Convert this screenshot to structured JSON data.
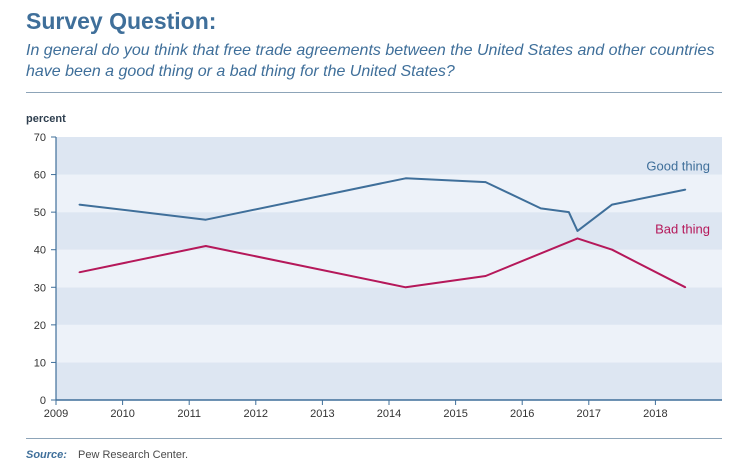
{
  "header": {
    "title": "Survey Question:",
    "question": "In general do you think that free trade agreements between the United States and other countries have been a good thing or a bad thing for the United States?"
  },
  "footer": {
    "source_label": "Source:",
    "source_text": "Pew Research Center."
  },
  "colors": {
    "good": "#3f6f9a",
    "bad": "#b5185a",
    "band_dark": "#dde6f2",
    "band_light": "#edf2f9",
    "axis": "#3f6f9a"
  },
  "chart_data": {
    "type": "line",
    "title": "",
    "xlabel": "",
    "ylabel": "percent",
    "xlim": [
      2009,
      2019
    ],
    "ylim": [
      0,
      70
    ],
    "x_ticks": [
      "2009",
      "2010",
      "2011",
      "2012",
      "2013",
      "2014",
      "2015",
      "2016",
      "2017",
      "2018"
    ],
    "y_ticks": [
      "0",
      "10",
      "20",
      "30",
      "40",
      "50",
      "60",
      "70"
    ],
    "grid": "alternating horizontal bands",
    "legend": "inline labels at right end of lines",
    "series": [
      {
        "name": "Good thing",
        "color": "#3f6f9a",
        "points": [
          [
            2009.35,
            52
          ],
          [
            2011.25,
            48
          ],
          [
            2014.25,
            59
          ],
          [
            2015.45,
            58
          ],
          [
            2016.28,
            51
          ],
          [
            2016.7,
            50
          ],
          [
            2016.83,
            45
          ],
          [
            2017.35,
            52
          ],
          [
            2018.45,
            56
          ]
        ]
      },
      {
        "name": "Bad thing",
        "color": "#b5185a",
        "points": [
          [
            2009.35,
            34
          ],
          [
            2011.25,
            41
          ],
          [
            2014.25,
            30
          ],
          [
            2015.45,
            33
          ],
          [
            2016.83,
            43
          ],
          [
            2017.35,
            40
          ],
          [
            2018.45,
            30
          ]
        ]
      }
    ]
  }
}
